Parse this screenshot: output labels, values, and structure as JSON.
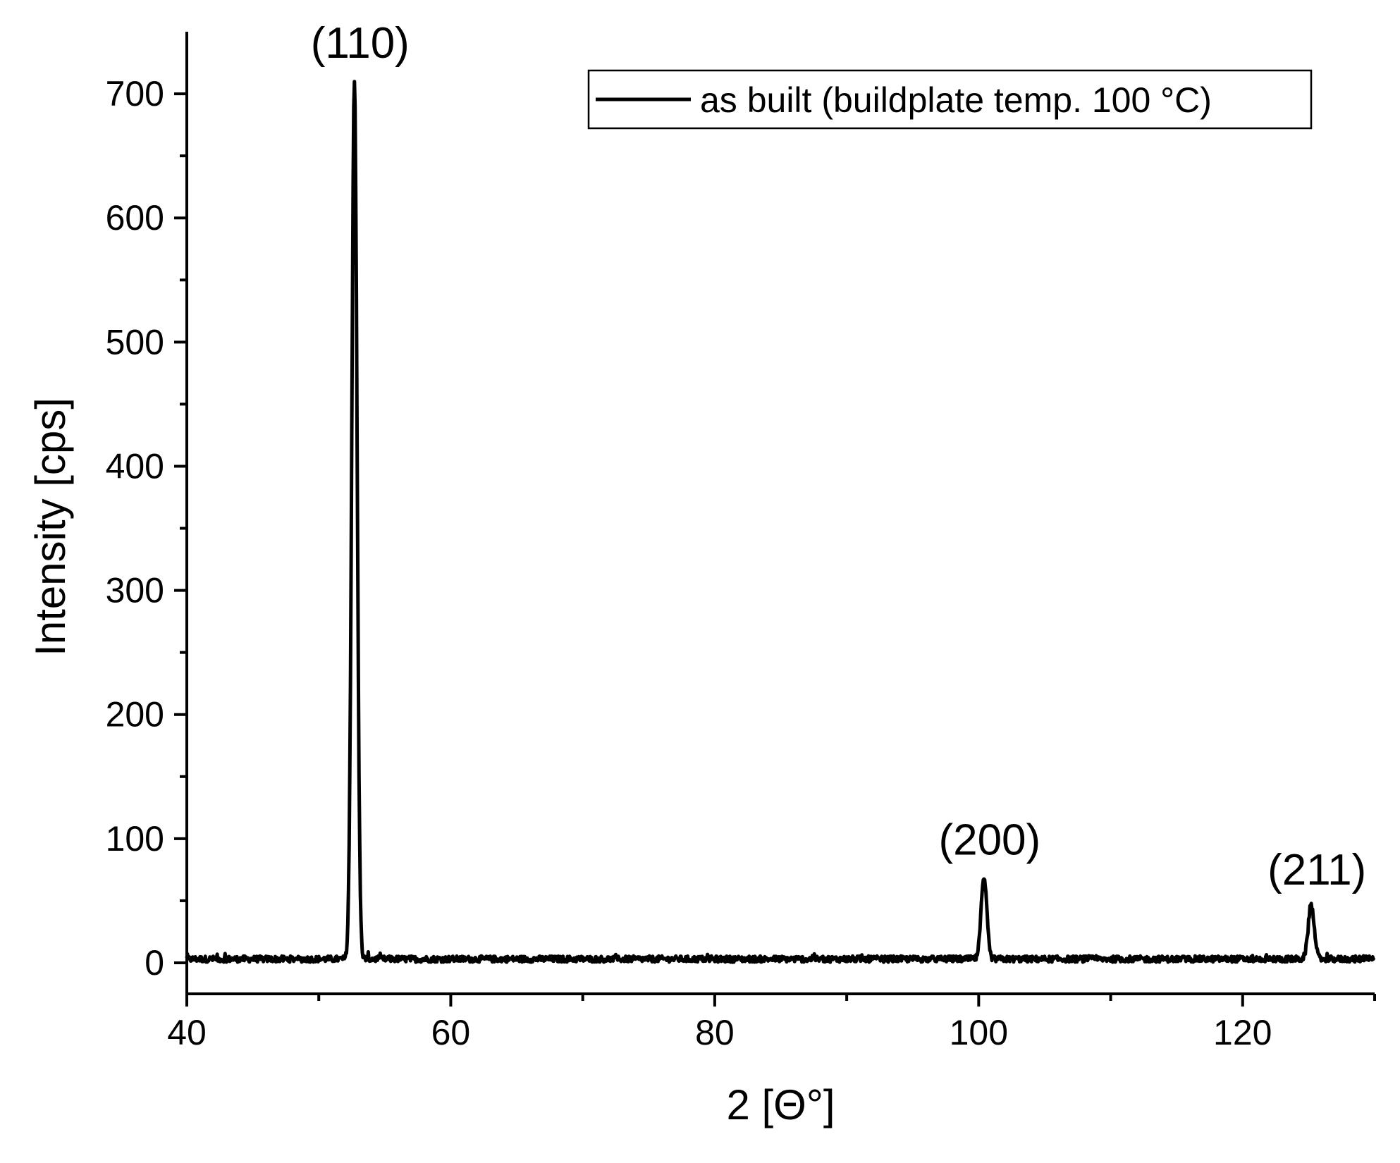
{
  "chart_data": {
    "type": "line",
    "xlabel": "2 [Θ°]",
    "ylabel": "Intensity [cps]",
    "xlim": [
      40,
      130
    ],
    "ylim": [
      -25,
      750
    ],
    "x_ticks": [
      40,
      60,
      80,
      100,
      120
    ],
    "y_ticks": [
      0,
      100,
      200,
      300,
      400,
      500,
      600,
      700
    ],
    "grid": false,
    "legend_position": "top-right",
    "series": [
      {
        "name": "as built (buildplate temp. 100 °C)",
        "color": "#000000",
        "baseline": 3,
        "peaks": [
          {
            "label": "(110)",
            "x": 52.7,
            "y": 712
          },
          {
            "label": "(200)",
            "x": 100.4,
            "y": 70
          },
          {
            "label": "(211)",
            "x": 125.2,
            "y": 46
          }
        ]
      }
    ]
  }
}
